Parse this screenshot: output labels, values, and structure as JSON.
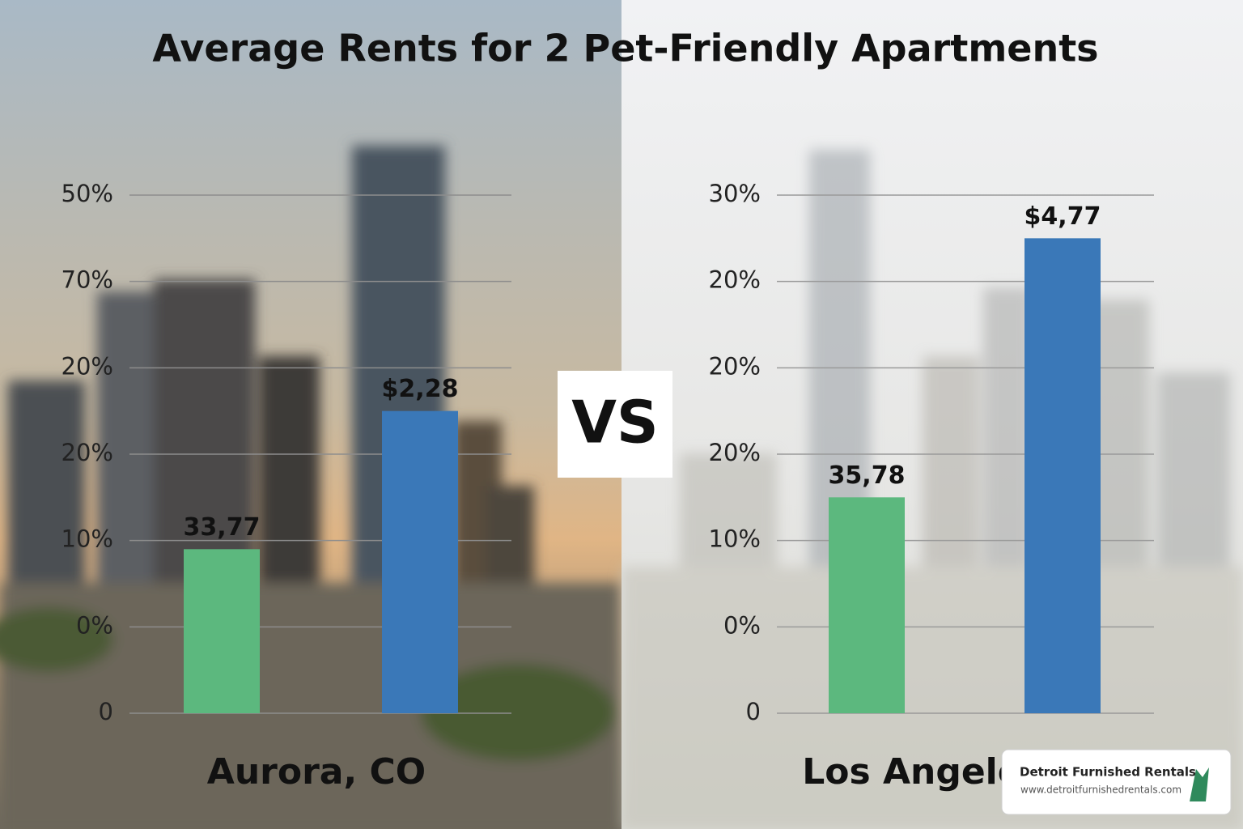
{
  "title": "Average Rents for 2 Pet-Friendly Apartments",
  "separator": "VS",
  "chart_data": [
    {
      "type": "bar",
      "label": "Aurora, CO",
      "categories": [
        null,
        null
      ],
      "values": [
        1.9,
        3.5
      ],
      "value_labels": [
        "33,77",
        "$2,28"
      ],
      "colors": [
        "#5cb87e",
        "#3a78b8"
      ],
      "ylim": [
        0,
        6
      ],
      "yticks": [
        0,
        {
          "value": 1,
          "label": "0%"
        },
        {
          "value": 2,
          "label": "10%"
        },
        {
          "value": 3,
          "label": "20%"
        },
        {
          "value": 4,
          "label": "20%"
        },
        {
          "value": 5,
          "label": "70%"
        },
        {
          "value": 6,
          "label": "50%"
        }
      ],
      "grid": true
    },
    {
      "type": "bar",
      "label": "Los Angeles",
      "categories": [
        null,
        null
      ],
      "values": [
        2.5,
        5.5
      ],
      "value_labels": [
        "35,78",
        "$4,77"
      ],
      "colors": [
        "#5cb87e",
        "#3a78b8"
      ],
      "ylim": [
        0,
        6
      ],
      "yticks": [
        0,
        {
          "value": 1,
          "label": "0%"
        },
        {
          "value": 2,
          "label": "10%"
        },
        {
          "value": 3,
          "label": "20%"
        },
        {
          "value": 4,
          "label": "20%"
        },
        {
          "value": 5,
          "label": "20%"
        },
        {
          "value": 6,
          "label": "30%"
        }
      ],
      "grid": true
    }
  ],
  "card": {
    "name": "Detroit Furnished Rentals",
    "url": "www.detroitfurnishedrentals.com"
  }
}
